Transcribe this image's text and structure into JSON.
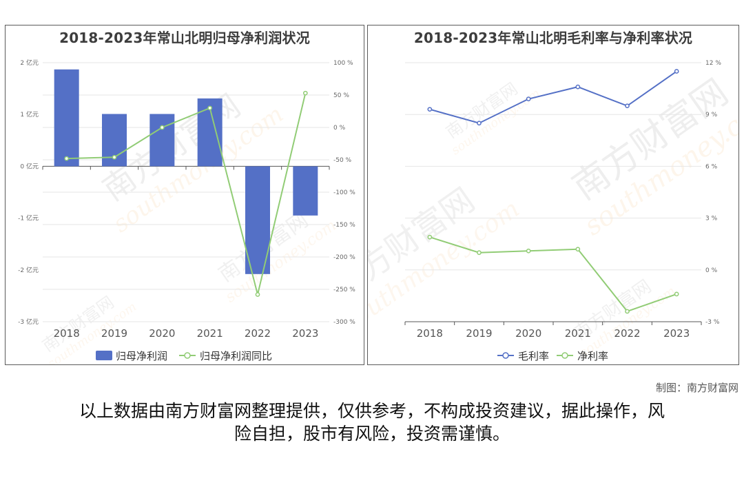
{
  "credit": "制图：南方财富网",
  "disclaimer_line1": "以上数据由南方财富网整理提供，仅供参考，不构成投资建议，据此操作，风",
  "disclaimer_line2": "险自担，股市有风险，投资需谨慎。",
  "watermark": {
    "cn": "南方财富网",
    "en": "southmoney.com"
  },
  "colors": {
    "bar": "#5470c6",
    "line_green": "#91cc75",
    "line_blue": "#5470c6",
    "grid": "#e6e6e6",
    "axis": "#666666"
  },
  "chart_data": [
    {
      "type": "bar",
      "title": "2018-2023年常山北明归母净利润状况",
      "categories": [
        "2018",
        "2019",
        "2020",
        "2021",
        "2022",
        "2023"
      ],
      "series": [
        {
          "name": "归母净利润",
          "type": "bar",
          "axis": "left",
          "values": [
            1.87,
            1.01,
            1.01,
            1.31,
            -2.08,
            -0.95
          ]
        },
        {
          "name": "归母净利润同比",
          "type": "line",
          "axis": "right",
          "values": [
            -48,
            -46,
            0,
            30,
            -258,
            53
          ]
        }
      ],
      "left_axis": {
        "min": -3,
        "max": 2,
        "ticks": [
          2,
          1,
          0,
          -1,
          -2,
          -3
        ],
        "tick_labels": [
          "2 亿元",
          "1 亿元",
          "0 亿元",
          "-1 亿元",
          "-2 亿元",
          "-3 亿元"
        ]
      },
      "right_axis": {
        "min": -300,
        "max": 100,
        "ticks": [
          100,
          50,
          0,
          -50,
          -100,
          -150,
          -200,
          -250,
          -300
        ],
        "tick_labels": [
          "100 %",
          "50 %",
          "0 %",
          "-50 %",
          "-100 %",
          "-150 %",
          "-200 %",
          "-250 %",
          "-300 %"
        ]
      },
      "grid": true,
      "legend_position": "bottom"
    },
    {
      "type": "line",
      "title": "2018-2023年常山北明毛利率与净利率状况",
      "categories": [
        "2018",
        "2019",
        "2020",
        "2021",
        "2022",
        "2023"
      ],
      "series": [
        {
          "name": "毛利率",
          "values": [
            9.3,
            8.5,
            9.9,
            10.6,
            9.5,
            11.5
          ]
        },
        {
          "name": "净利率",
          "values": [
            1.9,
            1.0,
            1.1,
            1.2,
            -2.4,
            -1.4
          ]
        }
      ],
      "y_axis": {
        "min": -3,
        "max": 12,
        "position": "right",
        "ticks": [
          12,
          9,
          6,
          3,
          0,
          -3
        ],
        "tick_labels": [
          "12 %",
          "9 %",
          "6 %",
          "3 %",
          "0 %",
          "-3 %"
        ]
      },
      "grid": true,
      "legend_position": "bottom"
    }
  ]
}
